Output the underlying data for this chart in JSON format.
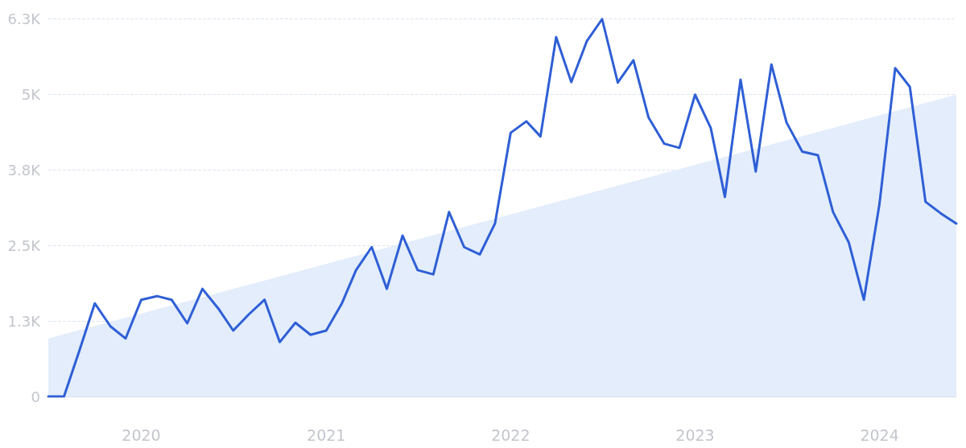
{
  "chart_data": {
    "type": "line",
    "x": [
      "2019-07",
      "2019-08",
      "2019-09",
      "2019-10",
      "2019-11",
      "2019-12",
      "2020-01",
      "2020-02",
      "2020-03",
      "2020-04",
      "2020-05",
      "2020-06",
      "2020-07",
      "2020-08",
      "2020-09",
      "2020-10",
      "2020-11",
      "2020-12",
      "2021-01",
      "2021-02",
      "2021-03",
      "2021-04",
      "2021-05",
      "2021-06",
      "2021-07",
      "2021-08",
      "2021-09",
      "2021-10",
      "2021-11",
      "2021-12",
      "2022-01",
      "2022-02",
      "2022-03",
      "2022-04",
      "2022-05",
      "2022-06",
      "2022-07",
      "2022-08",
      "2022-09",
      "2022-10",
      "2022-11",
      "2022-12",
      "2023-01",
      "2023-02",
      "2023-03",
      "2023-04",
      "2023-05",
      "2023-06",
      "2023-07",
      "2023-08",
      "2023-09",
      "2023-10",
      "2023-11",
      "2023-12",
      "2024-01",
      "2024-02",
      "2024-03",
      "2024-04",
      "2024-05",
      "2024-06"
    ],
    "series": [
      {
        "type": "area",
        "color": "#e3edfb",
        "x": [
          "2019-07",
          "2024-06"
        ],
        "values": [
          960,
          4990
        ]
      },
      {
        "color": "#2f5fd6",
        "values": [
          0,
          0,
          770,
          1540,
          1160,
          960,
          1600,
          1660,
          1600,
          1210,
          1780,
          1460,
          1090,
          1360,
          1600,
          900,
          1220,
          1020,
          1090,
          1540,
          2090,
          2470,
          1780,
          2660,
          2090,
          2020,
          3050,
          2470,
          2350,
          2860,
          4360,
          4550,
          4300,
          5940,
          5200,
          5880,
          6240,
          5190,
          5560,
          4610,
          4180,
          4110,
          4990,
          4440,
          3300,
          5240,
          3720,
          5490,
          4530,
          4050,
          3990,
          3050,
          2550,
          1600,
          3190,
          5430,
          5120,
          3220,
          3030,
          2860
        ]
      }
    ],
    "xlim": [
      "2019-07",
      "2024-06"
    ],
    "xticks": [
      "2020",
      "2021",
      "2022",
      "2023",
      "2024"
    ],
    "ylim": [
      0,
      6250
    ],
    "yticks": [
      0,
      {
        "value": 1250,
        "label": "1.3K"
      },
      {
        "value": 2500,
        "label": "2.5K"
      },
      {
        "value": 3750,
        "label": "3.8K"
      },
      {
        "value": 5000,
        "label": "5K"
      },
      {
        "value": 6250,
        "label": "6.3K"
      }
    ],
    "grid": "y",
    "marker": "none",
    "line_style": "solid"
  }
}
